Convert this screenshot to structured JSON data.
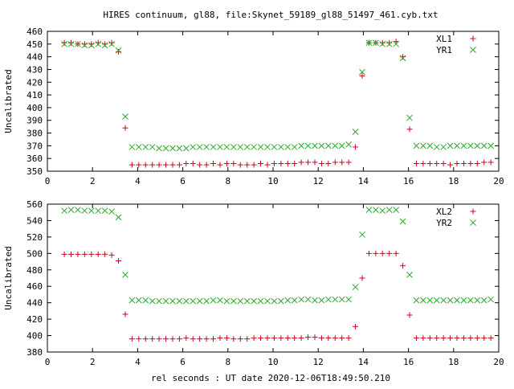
{
  "chart_data": {
    "title": "HIRES continuum, gl88, file:Skynet_59189_gl88_51497_461.cyb.txt",
    "xlabel": "rel seconds : UT date 2020-12-06T18:49:50.210",
    "panels": [
      {
        "type": "scatter",
        "ylabel": "Uncalibrated",
        "xlim": [
          0,
          20
        ],
        "ylim": [
          350,
          460
        ],
        "x_ticks": [
          0,
          2,
          4,
          6,
          8,
          10,
          12,
          14,
          16,
          18,
          20
        ],
        "y_ticks": [
          350,
          360,
          370,
          380,
          390,
          400,
          410,
          420,
          430,
          440,
          450,
          460
        ],
        "grid": false,
        "legend_position": "top-right",
        "series": [
          {
            "name": "XL1",
            "marker": "plus",
            "color": "#d0021b",
            "x": [
              0.75,
              1.05,
              1.35,
              1.65,
              1.95,
              2.25,
              2.55,
              2.85,
              3.15,
              3.45,
              3.75,
              4.05,
              4.35,
              4.65,
              4.95,
              5.25,
              5.55,
              5.85,
              6.15,
              6.45,
              6.75,
              7.05,
              7.35,
              7.65,
              7.95,
              8.25,
              8.55,
              8.85,
              9.15,
              9.45,
              9.75,
              10.05,
              10.35,
              10.65,
              10.95,
              11.25,
              11.55,
              11.85,
              12.15,
              12.45,
              12.75,
              13.05,
              13.35,
              13.65,
              13.95,
              14.25,
              14.55,
              14.85,
              15.15,
              15.45,
              15.75,
              16.05,
              16.35,
              16.65,
              16.95,
              17.25,
              17.55,
              17.85,
              18.15,
              18.45,
              18.75,
              19.05,
              19.35,
              19.65
            ],
            "y": [
              451,
              451,
              450,
              450,
              450,
              451,
              450,
              451,
              444,
              384,
              355,
              355,
              355,
              355,
              355,
              355,
              355,
              355,
              356,
              356,
              355,
              355,
              356,
              355,
              356,
              356,
              355,
              355,
              355,
              356,
              355,
              356,
              356,
              356,
              356,
              357,
              357,
              357,
              356,
              356,
              357,
              357,
              357,
              369,
              425,
              451,
              451,
              451,
              451,
              452,
              440,
              383,
              356,
              356,
              356,
              356,
              356,
              355,
              356,
              356,
              356,
              356,
              357,
              357
            ]
          },
          {
            "name": "YR1",
            "marker": "cross",
            "color": "#2da82d",
            "x": [
              0.75,
              1.05,
              1.35,
              1.65,
              1.95,
              2.25,
              2.55,
              2.85,
              3.15,
              3.45,
              3.75,
              4.05,
              4.35,
              4.65,
              4.95,
              5.25,
              5.55,
              5.85,
              6.15,
              6.45,
              6.75,
              7.05,
              7.35,
              7.65,
              7.95,
              8.25,
              8.55,
              8.85,
              9.15,
              9.45,
              9.75,
              10.05,
              10.35,
              10.65,
              10.95,
              11.25,
              11.55,
              11.85,
              12.15,
              12.45,
              12.75,
              13.05,
              13.35,
              13.65,
              13.95,
              14.25,
              14.55,
              14.85,
              15.15,
              15.45,
              15.75,
              16.05,
              16.35,
              16.65,
              16.95,
              17.25,
              17.55,
              17.85,
              18.15,
              18.45,
              18.75,
              19.05,
              19.35,
              19.65
            ],
            "y": [
              450,
              450,
              450,
              449,
              449,
              450,
              449,
              450,
              445,
              393,
              369,
              369,
              369,
              369,
              368,
              368,
              368,
              368,
              368,
              369,
              369,
              369,
              369,
              369,
              369,
              369,
              369,
              369,
              369,
              369,
              369,
              369,
              369,
              369,
              369,
              370,
              370,
              370,
              370,
              370,
              370,
              370,
              371,
              381,
              428,
              451,
              451,
              450,
              450,
              450,
              439,
              392,
              370,
              370,
              370,
              369,
              369,
              370,
              370,
              370,
              370,
              370,
              370,
              370
            ]
          }
        ]
      },
      {
        "type": "scatter",
        "ylabel": "Uncalibrated",
        "xlim": [
          0,
          20
        ],
        "ylim": [
          380,
          560
        ],
        "x_ticks": [
          0,
          2,
          4,
          6,
          8,
          10,
          12,
          14,
          16,
          18,
          20
        ],
        "y_ticks": [
          380,
          400,
          420,
          440,
          460,
          480,
          500,
          520,
          540,
          560
        ],
        "grid": false,
        "legend_position": "top-right",
        "series": [
          {
            "name": "XL2",
            "marker": "plus",
            "color": "#d0021b",
            "x": [
              0.75,
              1.05,
              1.35,
              1.65,
              1.95,
              2.25,
              2.55,
              2.85,
              3.15,
              3.45,
              3.75,
              4.05,
              4.35,
              4.65,
              4.95,
              5.25,
              5.55,
              5.85,
              6.15,
              6.45,
              6.75,
              7.05,
              7.35,
              7.65,
              7.95,
              8.25,
              8.55,
              8.85,
              9.15,
              9.45,
              9.75,
              10.05,
              10.35,
              10.65,
              10.95,
              11.25,
              11.55,
              11.85,
              12.15,
              12.45,
              12.75,
              13.05,
              13.35,
              13.65,
              13.95,
              14.25,
              14.55,
              14.85,
              15.15,
              15.45,
              15.75,
              16.05,
              16.35,
              16.65,
              16.95,
              17.25,
              17.55,
              17.85,
              18.15,
              18.45,
              18.75,
              19.05,
              19.35,
              19.65
            ],
            "y": [
              499,
              499,
              499,
              499,
              499,
              499,
              499,
              498,
              491,
              426,
              396,
              396,
              396,
              396,
              396,
              396,
              396,
              396,
              397,
              396,
              396,
              396,
              396,
              397,
              397,
              396,
              396,
              396,
              397,
              397,
              397,
              397,
              397,
              397,
              397,
              397,
              398,
              398,
              397,
              397,
              397,
              397,
              397,
              411,
              470,
              500,
              500,
              500,
              500,
              500,
              485,
              425,
              397,
              397,
              397,
              397,
              397,
              397,
              397,
              397,
              397,
              397,
              397,
              397
            ]
          },
          {
            "name": "YR2",
            "marker": "cross",
            "color": "#2da82d",
            "x": [
              0.75,
              1.05,
              1.35,
              1.65,
              1.95,
              2.25,
              2.55,
              2.85,
              3.15,
              3.45,
              3.75,
              4.05,
              4.35,
              4.65,
              4.95,
              5.25,
              5.55,
              5.85,
              6.15,
              6.45,
              6.75,
              7.05,
              7.35,
              7.65,
              7.95,
              8.25,
              8.55,
              8.85,
              9.15,
              9.45,
              9.75,
              10.05,
              10.35,
              10.65,
              10.95,
              11.25,
              11.55,
              11.85,
              12.15,
              12.45,
              12.75,
              13.05,
              13.35,
              13.65,
              13.95,
              14.25,
              14.55,
              14.85,
              15.15,
              15.45,
              15.75,
              16.05,
              16.35,
              16.65,
              16.95,
              17.25,
              17.55,
              17.85,
              18.15,
              18.45,
              18.75,
              19.05,
              19.35,
              19.65
            ],
            "y": [
              552,
              553,
              553,
              552,
              552,
              552,
              552,
              551,
              544,
              474,
              443,
              443,
              443,
              442,
              442,
              442,
              442,
              442,
              442,
              442,
              442,
              442,
              443,
              443,
              442,
              442,
              442,
              442,
              442,
              442,
              442,
              442,
              442,
              443,
              443,
              444,
              444,
              443,
              443,
              444,
              444,
              444,
              444,
              459,
              523,
              553,
              553,
              552,
              553,
              553,
              539,
              474,
              443,
              443,
              443,
              443,
              443,
              443,
              443,
              443,
              443,
              443,
              443,
              444
            ]
          }
        ]
      }
    ]
  }
}
